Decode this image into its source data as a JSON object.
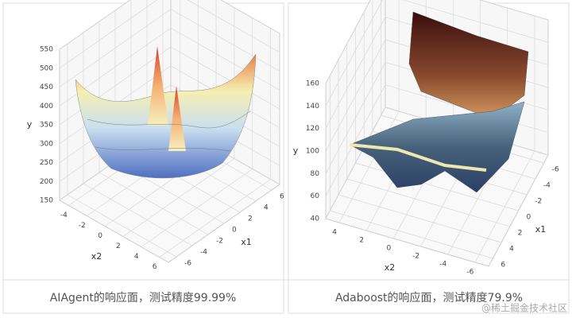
{
  "chart_data": [
    {
      "type": "surface",
      "title": "AIAgent的响应面，测试精度99.99%",
      "ylabel": "y",
      "xlabel": "x1",
      "x2label": "x2",
      "ylim": [
        150,
        550
      ],
      "yticks": [
        150,
        200,
        250,
        300,
        350,
        400,
        450,
        500,
        550
      ],
      "xlim": [
        -7,
        7
      ],
      "xticks": [
        -6,
        -4,
        -2,
        0,
        2,
        4,
        6
      ],
      "x2lim": [
        -5,
        7
      ],
      "x2ticks": [
        -4,
        -2,
        0,
        2,
        4,
        6
      ],
      "grid": true
    },
    {
      "type": "surface",
      "title": "Adaboost的响应面，测试精度79.9%",
      "ylabel": "y",
      "xlabel": "x1",
      "x2label": "x2",
      "ylim": [
        40,
        160
      ],
      "yticks": [
        40,
        60,
        80,
        100,
        120,
        140,
        160
      ],
      "xlim": [
        7,
        -7
      ],
      "xticks": [
        -6,
        -4,
        -2,
        0,
        2,
        4,
        6
      ],
      "x2lim": [
        5,
        -7
      ],
      "x2ticks": [
        4,
        2,
        0,
        -2,
        -4,
        -6
      ],
      "grid": true
    }
  ],
  "watermark": "@稀土掘金技术社区"
}
